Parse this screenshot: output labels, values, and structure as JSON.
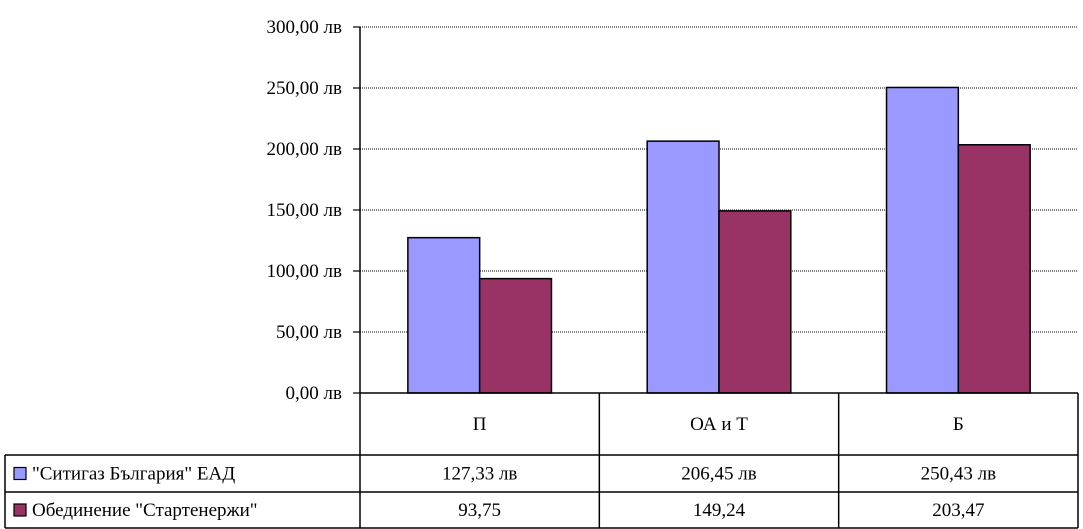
{
  "chart_data": {
    "type": "bar",
    "categories": [
      "П",
      "ОА и Т",
      "Б"
    ],
    "series": [
      {
        "name": "\"Ситигаз България\" ЕАД",
        "values": [
          127.33,
          206.45,
          250.43
        ],
        "value_labels": [
          "127,33 лв",
          "206,45 лв",
          "250,43 лв"
        ],
        "color": "#9999FF"
      },
      {
        "name": "Обединение \"Стартенержи\"",
        "values": [
          93.75,
          149.24,
          203.47
        ],
        "value_labels": [
          "93,75",
          "149,24",
          "203,47"
        ],
        "color": "#993366"
      }
    ],
    "ylim": [
      0,
      300
    ],
    "y_ticks": [
      {
        "value": 0,
        "label": "0,00 лв"
      },
      {
        "value": 50,
        "label": "50,00 лв"
      },
      {
        "value": 100,
        "label": "100,00 лв"
      },
      {
        "value": 150,
        "label": "150,00 лв"
      },
      {
        "value": 200,
        "label": "200,00 лв"
      },
      {
        "value": 250,
        "label": "250,00 лв"
      },
      {
        "value": 300,
        "label": "300,00 лв"
      }
    ],
    "grid": true,
    "legend": "data-table-left",
    "data_table": true
  }
}
